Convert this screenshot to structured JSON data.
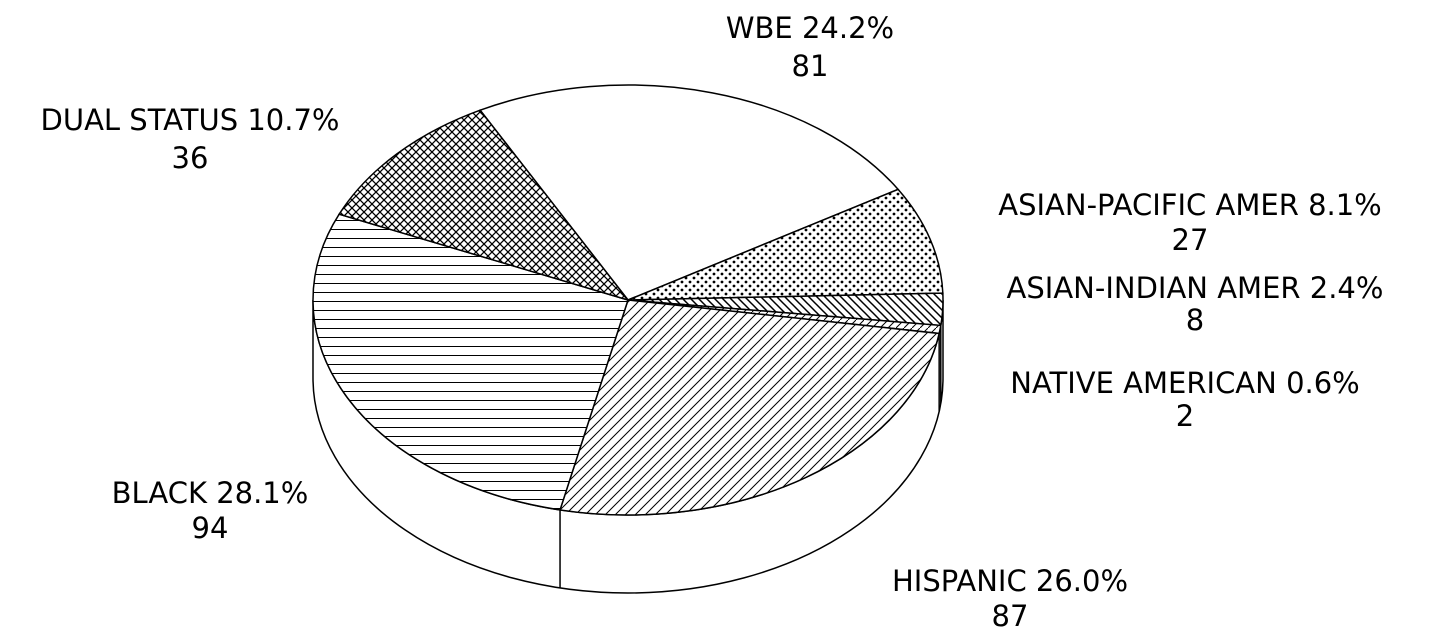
{
  "chart_data": {
    "type": "pie",
    "categories": [
      "WBE",
      "ASIAN-PACIFIC AMER",
      "ASIAN-INDIAN AMER",
      "NATIVE AMERICAN",
      "HISPANIC",
      "BLACK",
      "DUAL STATUS"
    ],
    "values": [
      24.2,
      8.1,
      2.4,
      0.6,
      26.0,
      28.1,
      10.7
    ],
    "value_labels": [
      "24.2%",
      "8.1%",
      "2.4%",
      "0.6%",
      "26.0%",
      "28.1%",
      "10.7%"
    ],
    "counts": [
      81,
      27,
      8,
      2,
      87,
      94,
      36
    ]
  }
}
